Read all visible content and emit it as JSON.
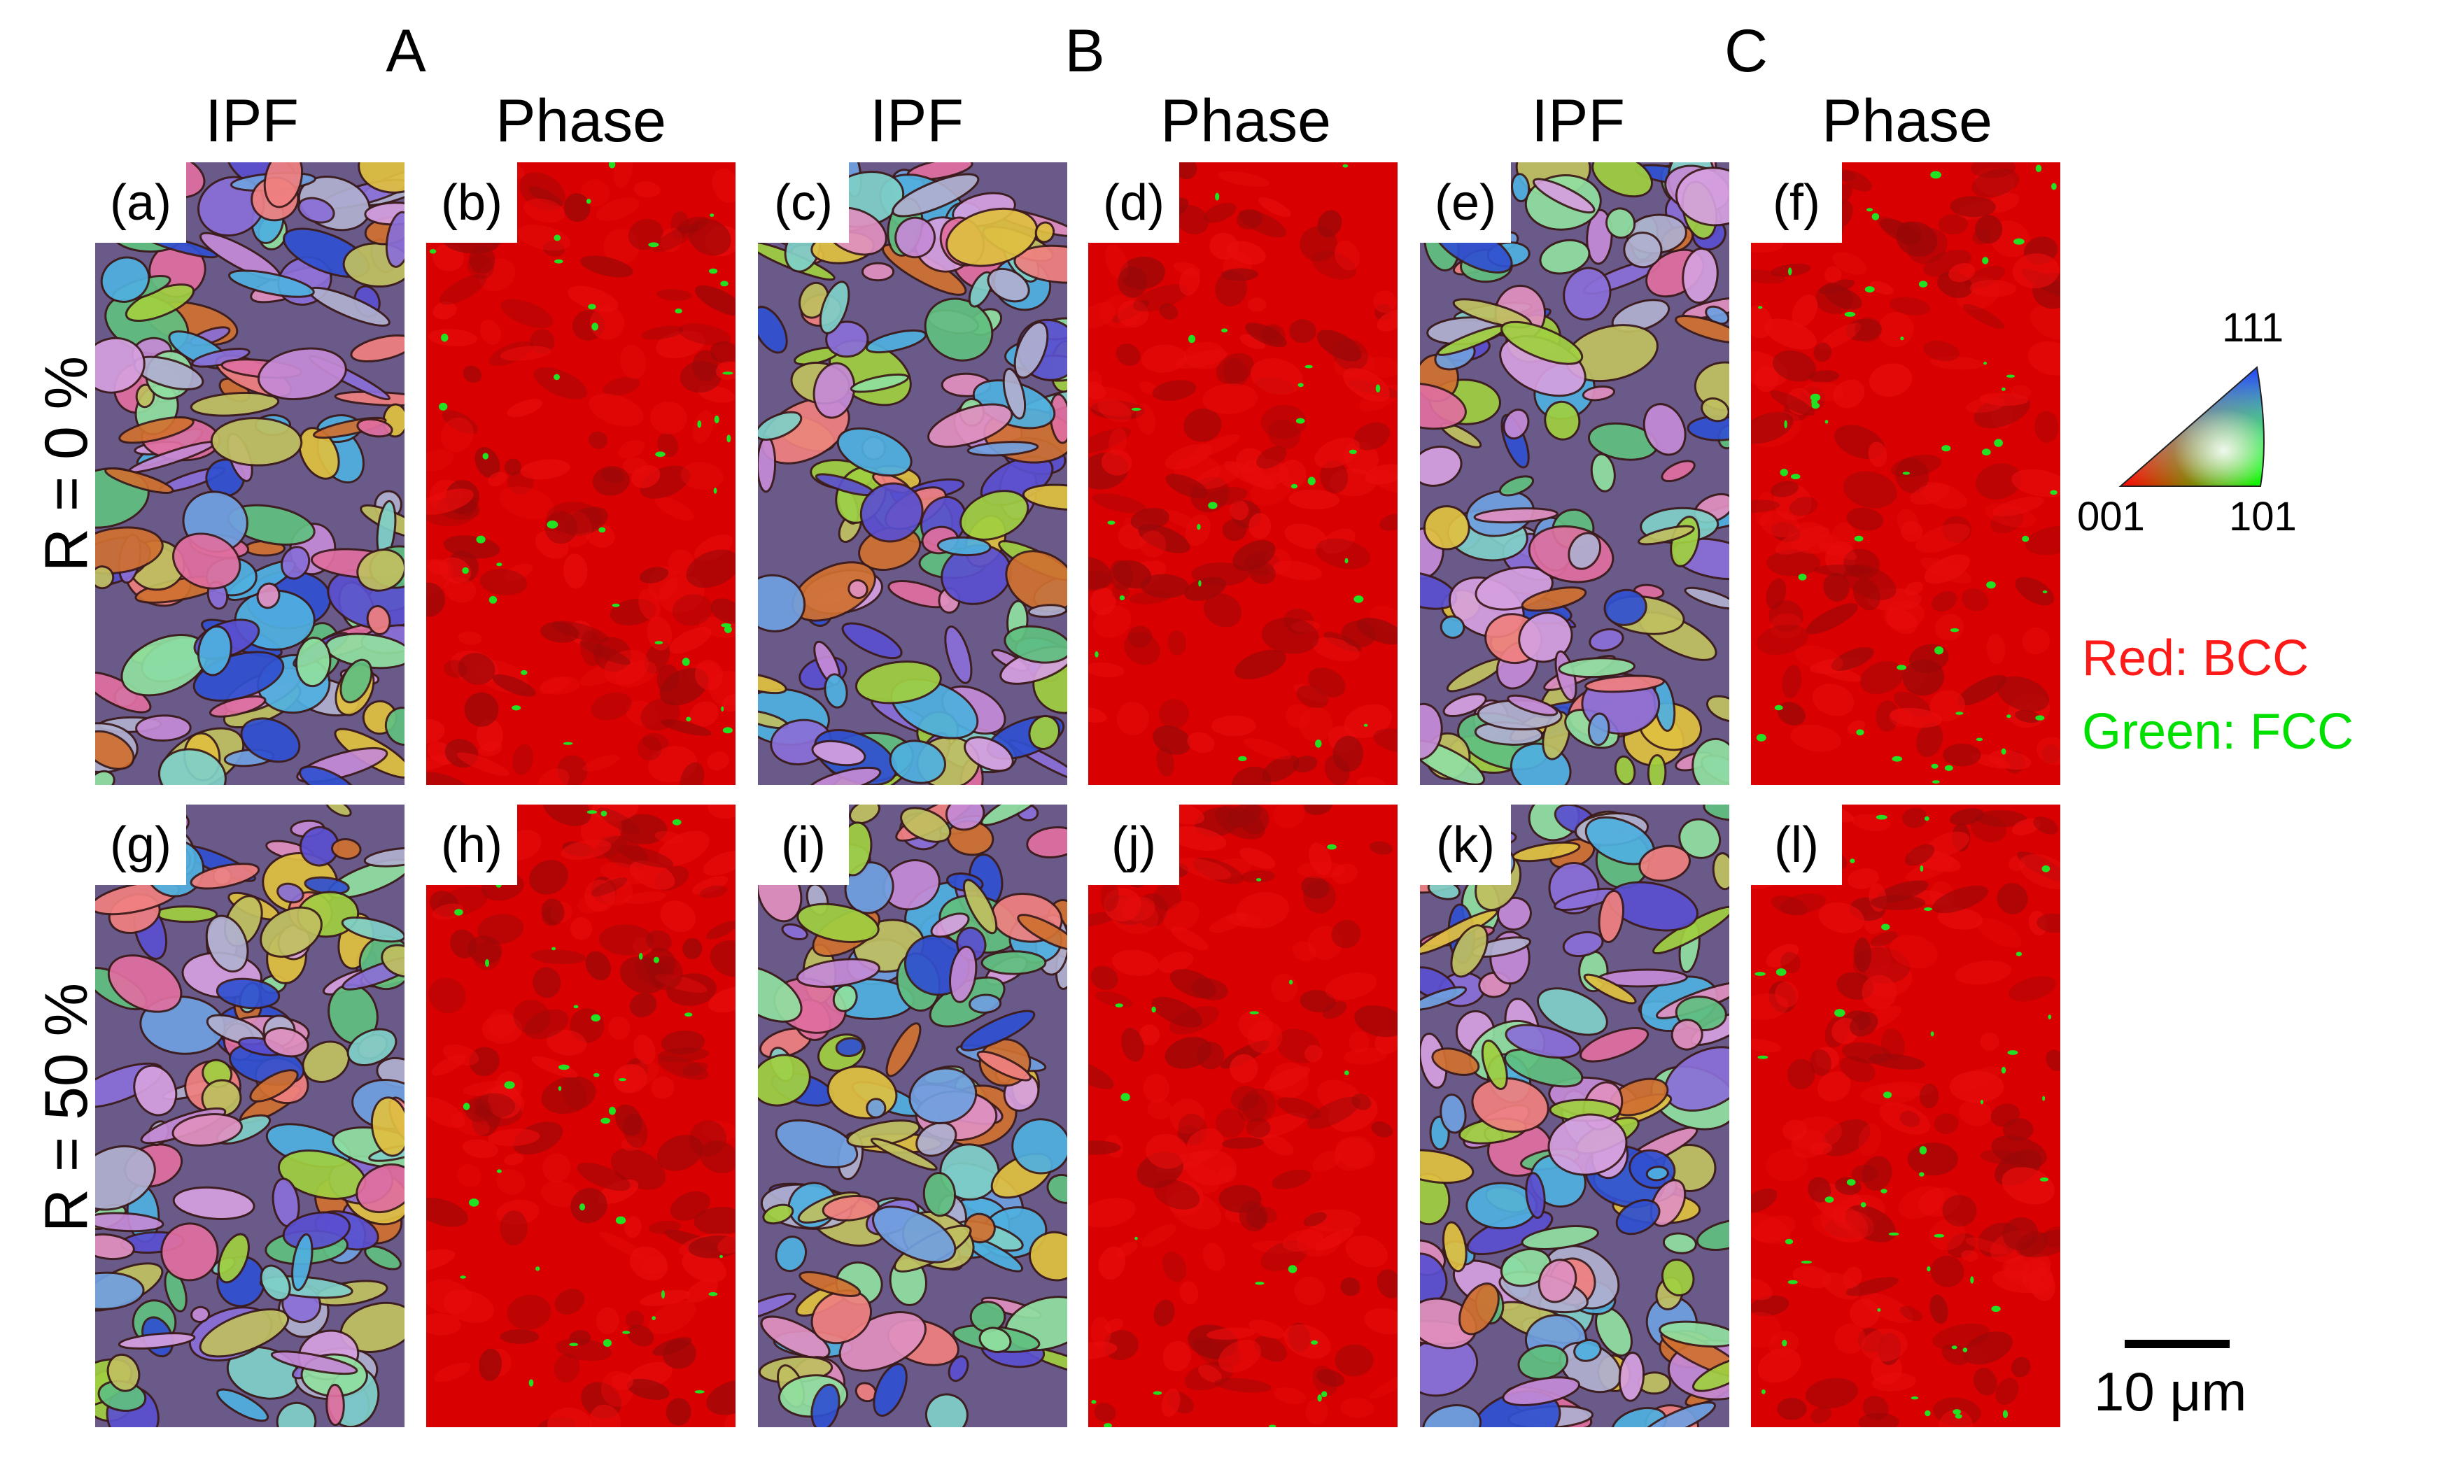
{
  "groups": [
    "A",
    "B",
    "C"
  ],
  "column_labels": [
    "IPF",
    "Phase",
    "IPF",
    "Phase",
    "IPF",
    "Phase"
  ],
  "row_labels": [
    "R = 0 %",
    "R = 50 %"
  ],
  "panels": [
    {
      "tag": "(a)",
      "kind": "IPF"
    },
    {
      "tag": "(b)",
      "kind": "Phase"
    },
    {
      "tag": "(c)",
      "kind": "IPF"
    },
    {
      "tag": "(d)",
      "kind": "Phase"
    },
    {
      "tag": "(e)",
      "kind": "IPF"
    },
    {
      "tag": "(f)",
      "kind": "Phase"
    },
    {
      "tag": "(g)",
      "kind": "IPF"
    },
    {
      "tag": "(h)",
      "kind": "Phase"
    },
    {
      "tag": "(i)",
      "kind": "IPF"
    },
    {
      "tag": "(j)",
      "kind": "Phase"
    },
    {
      "tag": "(k)",
      "kind": "IPF"
    },
    {
      "tag": "(l)",
      "kind": "Phase"
    }
  ],
  "ipf_legend": {
    "top": "111",
    "left": "001",
    "right": "101"
  },
  "phase_legend": {
    "bcc": {
      "text": "Red: BCC",
      "color": "#ff1a1a"
    },
    "fcc": {
      "text": "Green: FCC",
      "color": "#00e000"
    }
  },
  "scale_bar": {
    "label": "10 μm"
  },
  "colors": {
    "bcc_red": "#d80000",
    "fcc_green": "#22e022",
    "boundary": "#3a1a1a"
  }
}
